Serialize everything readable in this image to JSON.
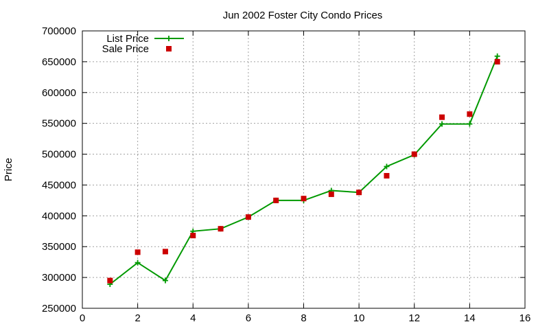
{
  "chart_data": {
    "type": "line",
    "title": "Jun 2002 Foster City Condo Prices",
    "xlabel": "",
    "ylabel": "Price",
    "xlim": [
      0,
      16
    ],
    "ylim": [
      250000,
      700000
    ],
    "xticks": [
      0,
      2,
      4,
      6,
      8,
      10,
      12,
      14,
      16
    ],
    "yticks": [
      250000,
      300000,
      350000,
      400000,
      450000,
      500000,
      550000,
      600000,
      650000,
      700000
    ],
    "grid": true,
    "legend": "top-left",
    "series": [
      {
        "name": "List Price",
        "style": "linespoints",
        "marker": "plus",
        "color": "#009900",
        "x": [
          1,
          2,
          3,
          4,
          5,
          6,
          7,
          8,
          9,
          10,
          11,
          12,
          13,
          14,
          15
        ],
        "values": [
          289000,
          324000,
          295000,
          375000,
          379000,
          398000,
          425000,
          425000,
          441000,
          438000,
          480000,
          499000,
          549000,
          549000,
          659000
        ]
      },
      {
        "name": "Sale Price",
        "style": "points",
        "marker": "square",
        "color": "#cc0000",
        "x": [
          1,
          2,
          3,
          4,
          5,
          6,
          7,
          8,
          9,
          10,
          11,
          12,
          13,
          14,
          15
        ],
        "values": [
          295000,
          341000,
          342000,
          368000,
          379000,
          398000,
          425000,
          428000,
          435000,
          438000,
          465000,
          500000,
          560000,
          565000,
          650000
        ]
      }
    ]
  }
}
